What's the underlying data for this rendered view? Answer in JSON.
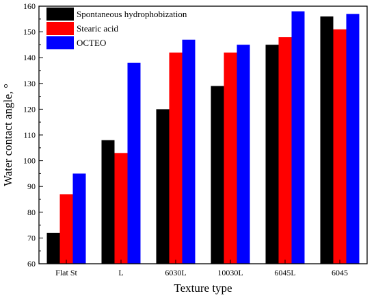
{
  "chart_data": {
    "type": "bar",
    "xlabel": "Texture type",
    "ylabel": "Water contact angle, °",
    "ylim": [
      60,
      160
    ],
    "yticks": [
      60,
      70,
      80,
      90,
      100,
      110,
      120,
      130,
      140,
      150,
      160
    ],
    "categories": [
      "Flat St",
      "L",
      "6030L",
      "10030L",
      "6045L",
      "6045"
    ],
    "series": [
      {
        "name": "Spontaneous hydrophobization",
        "color": "#000000",
        "values": [
          72,
          108,
          120,
          129,
          145,
          156
        ]
      },
      {
        "name": "Stearic acid",
        "color": "#ff0000",
        "values": [
          87,
          103,
          142,
          142,
          148,
          151
        ]
      },
      {
        "name": "OCTEO",
        "color": "#0000ff",
        "values": [
          95,
          138,
          147,
          145,
          158,
          157
        ]
      }
    ],
    "legend_position": "top-left",
    "grid": false
  }
}
